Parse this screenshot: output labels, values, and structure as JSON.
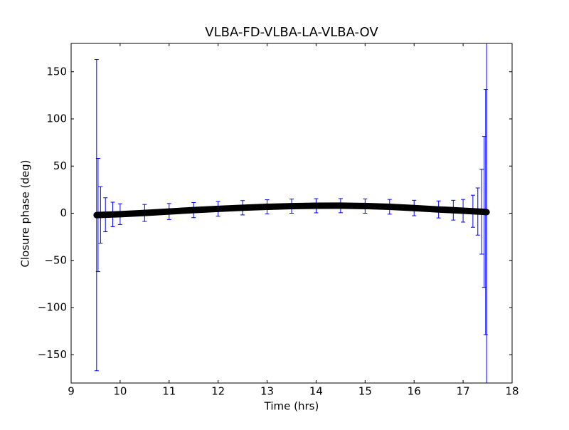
{
  "chart_data": {
    "type": "errorbar",
    "title": "VLBA-FD-VLBA-LA-VLBA-OV",
    "xlabel": "Time (hrs)",
    "ylabel": "Closure phase (deg)",
    "x": [
      9.52,
      9.55,
      9.6,
      9.7,
      9.85,
      10,
      10.5,
      11,
      11.5,
      12,
      12.5,
      13,
      13.5,
      14,
      14.5,
      15,
      15.5,
      16,
      16.5,
      16.8,
      17,
      17.2,
      17.3,
      17.38,
      17.43,
      17.46,
      17.48
    ],
    "values": [
      -2,
      -1.9,
      -1.8,
      -1.6,
      -1.3,
      -1,
      0.3,
      1.8,
      3.3,
      4.6,
      5.8,
      6.8,
      7.5,
      7.9,
      8,
      7.6,
      6.8,
      5.5,
      4,
      3.2,
      2.6,
      2.1,
      1.8,
      1.6,
      1.4,
      1.3,
      1.2
    ],
    "errors": [
      165,
      60,
      30,
      18,
      13,
      11,
      9,
      8.5,
      8,
      7.8,
      7.6,
      7.5,
      7.5,
      7.5,
      7.5,
      7.6,
      7.8,
      8.2,
      9,
      10.5,
      12,
      17,
      25,
      45,
      80,
      130,
      200
    ],
    "marker_color": "#000000",
    "error_color": "#0000ff",
    "xlim": [
      9,
      18
    ],
    "xticks": [
      9,
      10,
      11,
      12,
      13,
      14,
      15,
      16,
      17,
      18
    ],
    "ylim": [
      -180,
      180
    ],
    "yticks": [
      {
        "value": -150,
        "label": "−150"
      },
      {
        "value": -100,
        "label": "−100"
      },
      {
        "value": -50,
        "label": "−50"
      },
      0,
      50,
      100,
      150
    ]
  }
}
